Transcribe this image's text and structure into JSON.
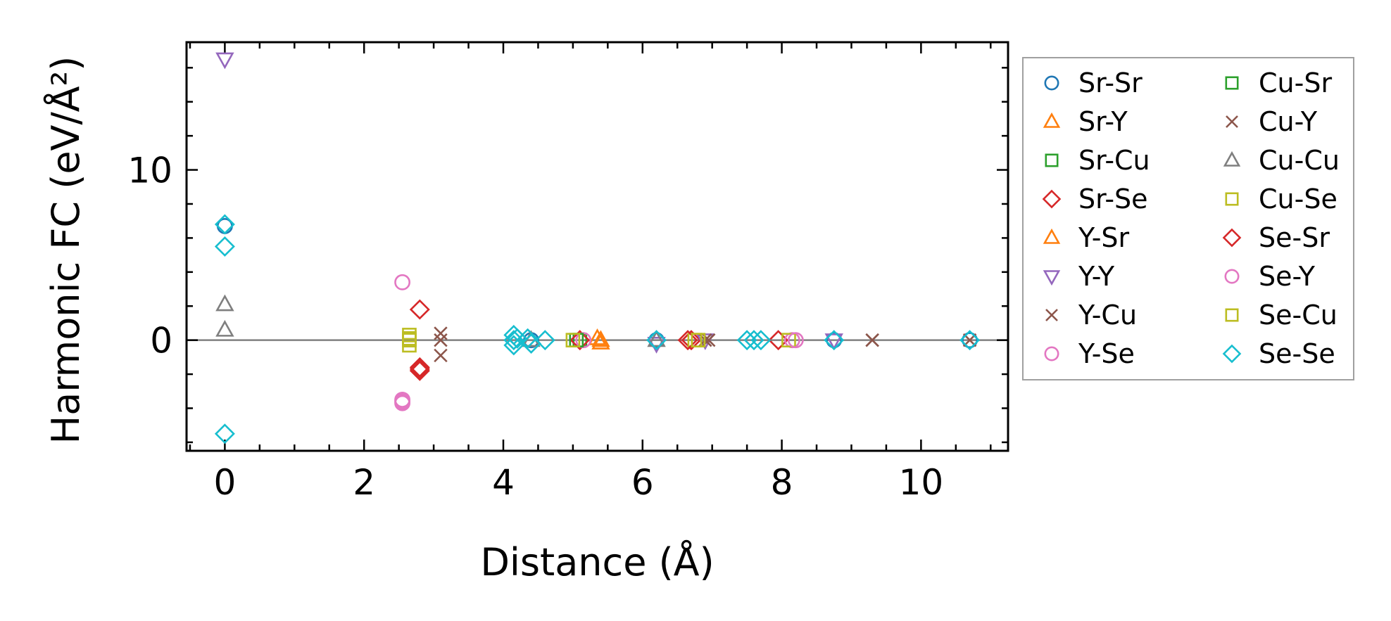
{
  "chart_data": {
    "type": "scatter",
    "xlabel": "Distance (Å)",
    "ylabel": "Harmonic FC (eV/Å²)",
    "xlim": [
      -0.55,
      11.25
    ],
    "ylim": [
      -6.5,
      17.5
    ],
    "xticks": [
      0,
      2,
      4,
      6,
      8,
      10
    ],
    "xtick_labels": [
      "0",
      "2",
      "4",
      "6",
      "8",
      "10"
    ],
    "yticks": [
      0,
      10
    ],
    "ytick_labels": [
      "0",
      "10"
    ],
    "x_minor_step": 0.5,
    "y_minor_step": 2,
    "zero_line": true,
    "grid": false,
    "legend_placement": "outside-right",
    "legend_columns": 2,
    "series": [
      {
        "name": "Sr-Sr",
        "marker": "circle",
        "color": "#1f77b4",
        "points": [
          [
            0,
            6.7
          ],
          [
            4.4,
            0.0
          ],
          [
            6.2,
            0.0
          ],
          [
            8.75,
            0.0
          ],
          [
            10.7,
            0.0
          ]
        ]
      },
      {
        "name": "Sr-Y",
        "marker": "triangle-up",
        "color": "#ff7f0e",
        "points": [
          [
            5.35,
            0.1
          ],
          [
            5.4,
            -0.15
          ]
        ]
      },
      {
        "name": "Sr-Cu",
        "marker": "square",
        "color": "#2ca02c",
        "points": [
          [
            5.1,
            0.0
          ]
        ]
      },
      {
        "name": "Sr-Se",
        "marker": "diamond",
        "color": "#d62728",
        "points": [
          [
            2.8,
            1.8
          ],
          [
            2.8,
            -1.6
          ],
          [
            2.8,
            -1.8
          ],
          [
            5.1,
            0.0
          ],
          [
            6.7,
            0.0
          ],
          [
            7.95,
            0.0
          ]
        ]
      },
      {
        "name": "Y-Sr",
        "marker": "triangle-up",
        "color": "#ff7f0e",
        "points": [
          [
            5.4,
            0.0
          ]
        ]
      },
      {
        "name": "Y-Y",
        "marker": "triangle-down",
        "color": "#9467bd",
        "points": [
          [
            0,
            16.5
          ],
          [
            6.2,
            -0.2
          ],
          [
            6.9,
            0.0
          ],
          [
            8.75,
            0.0
          ]
        ]
      },
      {
        "name": "Y-Cu",
        "marker": "x",
        "color": "#8c564b",
        "points": [
          [
            3.1,
            0.4
          ],
          [
            3.1,
            -0.9
          ],
          [
            6.9,
            0.0
          ],
          [
            9.3,
            0.0
          ],
          [
            10.7,
            0.0
          ]
        ]
      },
      {
        "name": "Y-Se",
        "marker": "circle",
        "color": "#e377c2",
        "points": [
          [
            2.55,
            3.4
          ],
          [
            2.55,
            -3.5
          ],
          [
            2.55,
            -3.7
          ],
          [
            5.15,
            0.0
          ],
          [
            8.15,
            0.0
          ]
        ]
      },
      {
        "name": "Cu-Sr",
        "marker": "square",
        "color": "#2ca02c",
        "points": [
          [
            5.05,
            0.0
          ]
        ]
      },
      {
        "name": "Cu-Y",
        "marker": "x",
        "color": "#8c564b",
        "points": [
          [
            3.1,
            0.0
          ],
          [
            6.95,
            0.0
          ],
          [
            9.3,
            0.0
          ]
        ]
      },
      {
        "name": "Cu-Cu",
        "marker": "triangle-up",
        "color": "#7f7f7f",
        "points": [
          [
            0,
            2.1
          ],
          [
            0,
            0.6
          ],
          [
            4.4,
            0.0
          ],
          [
            6.2,
            0.0
          ]
        ]
      },
      {
        "name": "Cu-Se",
        "marker": "square",
        "color": "#bcbd22",
        "points": [
          [
            2.65,
            0.3
          ],
          [
            2.65,
            0.0
          ],
          [
            2.65,
            -0.3
          ],
          [
            5.0,
            0.0
          ],
          [
            6.75,
            0.0
          ],
          [
            8.1,
            0.0
          ]
        ]
      },
      {
        "name": "Se-Sr",
        "marker": "diamond",
        "color": "#d62728",
        "points": [
          [
            2.8,
            -1.7
          ],
          [
            6.65,
            0.0
          ]
        ]
      },
      {
        "name": "Se-Y",
        "marker": "circle",
        "color": "#e377c2",
        "points": [
          [
            2.55,
            -3.6
          ],
          [
            8.2,
            0.0
          ]
        ]
      },
      {
        "name": "Se-Cu",
        "marker": "square",
        "color": "#bcbd22",
        "points": [
          [
            2.65,
            0.1
          ],
          [
            6.8,
            0.0
          ]
        ]
      },
      {
        "name": "Se-Se",
        "marker": "diamond",
        "color": "#17becf",
        "points": [
          [
            0,
            6.8
          ],
          [
            0,
            5.5
          ],
          [
            0,
            -5.5
          ],
          [
            4.15,
            0.3
          ],
          [
            4.15,
            0.0
          ],
          [
            4.15,
            -0.3
          ],
          [
            4.2,
            0.1
          ],
          [
            4.35,
            0.1
          ],
          [
            4.4,
            -0.2
          ],
          [
            4.6,
            0.0
          ],
          [
            6.2,
            0.0
          ],
          [
            7.5,
            0.0
          ],
          [
            7.6,
            0.0
          ],
          [
            7.7,
            0.0
          ],
          [
            8.75,
            0.0
          ],
          [
            10.7,
            0.0
          ]
        ]
      }
    ]
  }
}
